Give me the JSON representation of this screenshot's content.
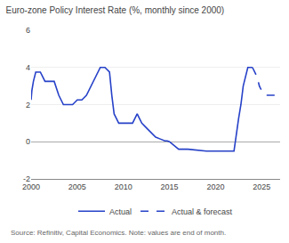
{
  "chart_data": {
    "type": "line",
    "title": "Euro-zone Policy Interest Rate (%, monthly since 2000)",
    "annotations": [
      "Source: Refinitiv, Capital Economics. Note: values are end of month."
    ],
    "xlim": [
      2000,
      2027
    ],
    "xticks": [
      2000,
      2005,
      2010,
      2015,
      2020,
      2025
    ],
    "ylim": [
      -2,
      6
    ],
    "yticks": [
      -2,
      0,
      2,
      4,
      6
    ],
    "grid": "y",
    "legend": "bottom",
    "series": [
      {
        "name": "Actual",
        "color": "#2641c8",
        "line_style": "solid",
        "x": [
          2000.0,
          2000.08,
          2000.25,
          2000.5,
          2000.75,
          2001.0,
          2001.25,
          2001.5,
          2001.75,
          2002.0,
          2002.5,
          2003.0,
          2003.5,
          2004.0,
          2004.5,
          2005.0,
          2005.5,
          2006.0,
          2006.5,
          2007.0,
          2007.5,
          2008.0,
          2008.5,
          2008.75,
          2009.0,
          2009.25,
          2009.5,
          2009.75,
          2010.0,
          2010.5,
          2011.0,
          2011.25,
          2011.5,
          2011.75,
          2012.0,
          2012.5,
          2013.0,
          2013.5,
          2014.0,
          2014.5,
          2014.75,
          2015.0,
          2016.0,
          2016.5,
          2017.0,
          2019.0,
          2019.5,
          2020.0,
          2021.0,
          2021.5,
          2022.0,
          2022.5,
          2022.75,
          2023.0,
          2023.5,
          2023.75,
          2024.0
        ],
        "values": [
          2.25,
          2.75,
          3.25,
          3.75,
          3.75,
          3.75,
          3.5,
          3.25,
          3.25,
          3.25,
          3.25,
          2.5,
          2.0,
          2.0,
          2.0,
          2.25,
          2.25,
          2.5,
          3.0,
          3.5,
          4.0,
          4.0,
          3.75,
          2.5,
          1.5,
          1.25,
          1.0,
          1.0,
          1.0,
          1.0,
          1.0,
          1.25,
          1.5,
          1.25,
          1.0,
          0.75,
          0.5,
          0.25,
          0.15,
          0.05,
          0.05,
          0.0,
          -0.4,
          -0.4,
          -0.4,
          -0.5,
          -0.5,
          -0.5,
          -0.5,
          -0.5,
          -0.5,
          1.25,
          2.0,
          3.0,
          4.0,
          4.0,
          4.0
        ]
      },
      {
        "name": "Actual & forecast",
        "color": "#2641c8",
        "line_style": "dashed",
        "x": [
          2024.0,
          2024.25,
          2024.5,
          2024.75,
          2025.0,
          2025.25,
          2025.5,
          2025.75,
          2026.0,
          2026.5
        ],
        "values": [
          4.0,
          3.75,
          3.5,
          3.0,
          2.75,
          2.6,
          2.5,
          2.5,
          2.5,
          2.5
        ]
      }
    ]
  }
}
